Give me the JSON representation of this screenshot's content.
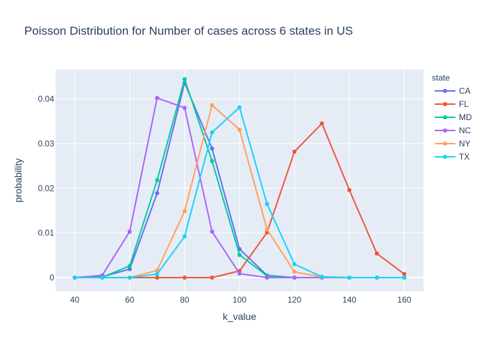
{
  "chart_data": {
    "type": "line",
    "title": "Poisson Distribution for Number of cases across 6 states in US",
    "xlabel": "k_value",
    "ylabel": "probability",
    "xlim": [
      33,
      167
    ],
    "ylim": [
      -0.0031,
      0.0466
    ],
    "x_ticks": [
      40,
      60,
      80,
      100,
      120,
      140,
      160
    ],
    "y_ticks": [
      0,
      0.01,
      0.02,
      0.03,
      0.04
    ],
    "y_tick_labels": [
      "0",
      "0.01",
      "0.02",
      "0.03",
      "0.04"
    ],
    "grid": true,
    "legend_title": "state",
    "legend_position": "right",
    "x": [
      40,
      50,
      60,
      70,
      80,
      90,
      100,
      110,
      120,
      130,
      140,
      150,
      160
    ],
    "series": [
      {
        "name": "CA",
        "color": "#636efa",
        "values": [
          0,
          0.0002,
          0.0019,
          0.0189,
          0.0436,
          0.0289,
          0.0064,
          0.0005,
          0,
          0,
          0,
          0,
          0
        ]
      },
      {
        "name": "FL",
        "color": "#EF553B",
        "values": [
          0,
          0,
          0,
          0,
          0,
          0,
          0.0015,
          0.0101,
          0.0282,
          0.0345,
          0.0196,
          0.0054,
          0.0008
        ]
      },
      {
        "name": "MD",
        "color": "#00cc96",
        "values": [
          0,
          0.0001,
          0.0026,
          0.0218,
          0.0444,
          0.0261,
          0.0051,
          0.0004,
          0,
          0,
          0,
          0,
          0
        ]
      },
      {
        "name": "NC",
        "color": "#ab63fa",
        "values": [
          0,
          0.0005,
          0.0103,
          0.0402,
          0.038,
          0.0103,
          0.0009,
          0,
          0,
          0,
          0,
          0,
          0
        ]
      },
      {
        "name": "NY",
        "color": "#FFA15A",
        "values": [
          0,
          0,
          0,
          0.0016,
          0.0149,
          0.0386,
          0.0331,
          0.0108,
          0.0013,
          0.0001,
          0,
          0,
          0
        ]
      },
      {
        "name": "TX",
        "color": "#19d3f3",
        "values": [
          0,
          0,
          0,
          0.0008,
          0.0092,
          0.0325,
          0.0381,
          0.0165,
          0.003,
          0.0002,
          0,
          0,
          0
        ]
      }
    ]
  }
}
